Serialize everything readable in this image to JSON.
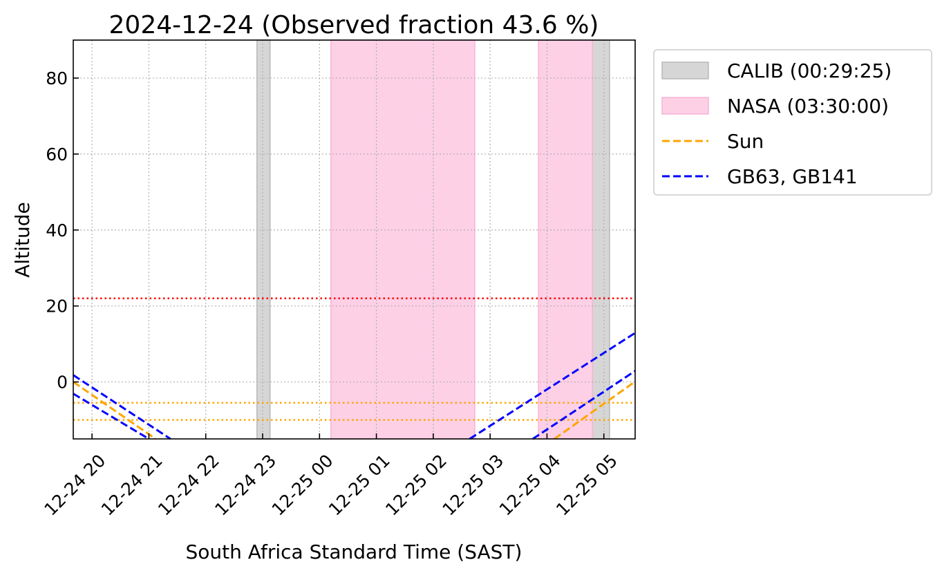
{
  "chart_data": {
    "type": "line",
    "title": "2024-12-24 (Observed fraction 43.6 %)",
    "xlabel": "South Africa Standard Time (SAST)",
    "ylabel": "Altitude",
    "x_unit": "hours since 2024-12-24 00:00 SAST",
    "xlim": [
      19.67,
      29.55
    ],
    "ylim": [
      -15,
      90
    ],
    "grid": true,
    "legend_placement": "outside-top-right",
    "x_ticks": [
      20,
      21,
      22,
      23,
      24,
      25,
      26,
      27,
      28,
      29
    ],
    "x_tick_labels": [
      "12-24 20",
      "12-24 21",
      "12-24 22",
      "12-24 23",
      "12-25 00",
      "12-25 01",
      "12-25 02",
      "12-25 03",
      "12-25 04",
      "12-25 05"
    ],
    "y_ticks": [
      0,
      20,
      40,
      60,
      80
    ],
    "y_tick_labels": [
      "0",
      "20",
      "40",
      "60",
      "80"
    ],
    "spans": [
      {
        "name": "CALIB (00:29:25)",
        "color": "#d6d6d6",
        "edge": "#b8b8b8",
        "ranges": [
          [
            22.9,
            23.13
          ],
          [
            28.8,
            29.1
          ]
        ]
      },
      {
        "name": "NASA (03:30:00)",
        "color": "#fdd0e6",
        "edge": "#f7b3d4",
        "ranges": [
          [
            24.2,
            26.73
          ],
          [
            27.85,
            28.8
          ]
        ]
      }
    ],
    "hlines": [
      {
        "y": 22,
        "color": "#ff0000"
      },
      {
        "y": -5.5,
        "color": "#ffa500"
      },
      {
        "y": -10,
        "color": "#ffa500"
      }
    ],
    "series": [
      {
        "name": "Sun",
        "color": "#ffa500",
        "legend": true,
        "segments": [
          [
            [
              19.67,
              0
            ],
            [
              21.12,
              -15
            ]
          ],
          [
            [
              28.13,
              -15
            ],
            [
              29.55,
              0.1
            ]
          ]
        ]
      },
      {
        "name": "GB63, GB141",
        "color": "#0000ff",
        "legend": true,
        "segments": [
          [
            [
              19.67,
              1.8
            ],
            [
              21.38,
              -15
            ]
          ],
          [
            [
              26.64,
              -15
            ],
            [
              29.55,
              12.9
            ]
          ]
        ]
      },
      {
        "name": "GB141",
        "color": "#0000ff",
        "legend": false,
        "segments": [
          [
            [
              19.67,
              -3.1
            ],
            [
              21.0,
              -15
            ]
          ],
          [
            [
              27.75,
              -15
            ],
            [
              29.55,
              2.9
            ]
          ]
        ]
      }
    ],
    "legend": [
      "CALIB (00:29:25)",
      "NASA (03:30:00)",
      "Sun",
      "GB63, GB141"
    ]
  }
}
